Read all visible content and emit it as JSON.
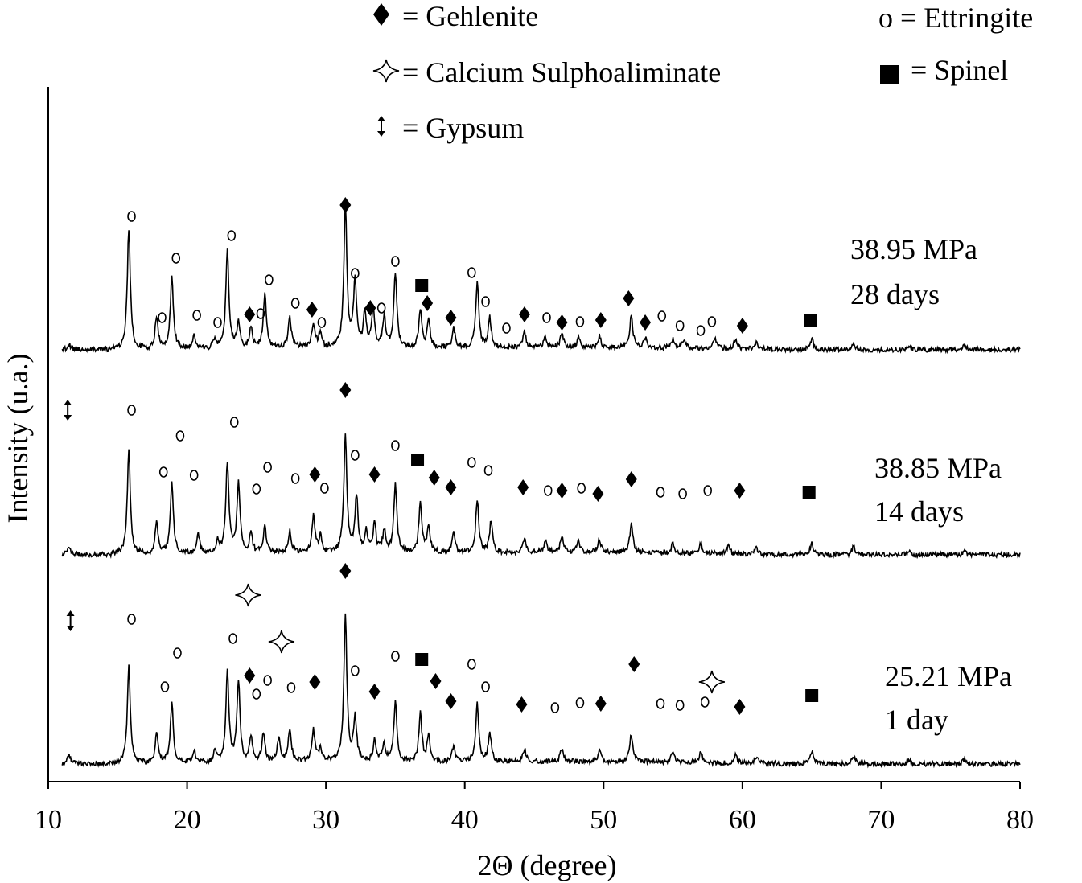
{
  "chart_data": {
    "type": "line",
    "title": "",
    "xlabel": "2Θ (degree)",
    "ylabel": "Intensity (u.a.)",
    "xlim": [
      10,
      80
    ],
    "xticks": [
      "10",
      "20",
      "30",
      "40",
      "50",
      "60",
      "70",
      "80"
    ],
    "grid": false,
    "legend_position": "top",
    "legend": [
      {
        "symbol": "diamond",
        "label": "= Gehlenite"
      },
      {
        "symbol": "star",
        "label": "= Calcium Sulphoaliminate"
      },
      {
        "symbol": "arrow",
        "label": "= Gypsum"
      },
      {
        "symbol": "circle",
        "label": "o =  Ettringite"
      },
      {
        "symbol": "square",
        "label": "=  Spinel"
      }
    ],
    "series": [
      {
        "strength": "38.95 MPa",
        "age": "28 days",
        "peaks": [
          [
            11.5,
            6
          ],
          [
            15.8,
            150
          ],
          [
            17.8,
            40
          ],
          [
            18.9,
            90
          ],
          [
            20.5,
            16
          ],
          [
            22.0,
            12
          ],
          [
            22.9,
            120
          ],
          [
            23.7,
            30
          ],
          [
            24.6,
            26
          ],
          [
            25.6,
            66
          ],
          [
            27.4,
            36
          ],
          [
            29.1,
            30
          ],
          [
            29.6,
            18
          ],
          [
            31.4,
            175
          ],
          [
            32.1,
            82
          ],
          [
            32.8,
            42
          ],
          [
            33.4,
            48
          ],
          [
            34.2,
            38
          ],
          [
            35.0,
            92
          ],
          [
            36.8,
            46
          ],
          [
            37.4,
            32
          ],
          [
            39.2,
            24
          ],
          [
            40.9,
            82
          ],
          [
            41.8,
            36
          ],
          [
            44.3,
            20
          ],
          [
            45.8,
            14
          ],
          [
            47.0,
            18
          ],
          [
            48.2,
            12
          ],
          [
            49.7,
            14
          ],
          [
            52.0,
            40
          ],
          [
            53.0,
            12
          ],
          [
            55.0,
            12
          ],
          [
            55.8,
            10
          ],
          [
            58.0,
            12
          ],
          [
            59.5,
            12
          ],
          [
            61.0,
            8
          ],
          [
            65.0,
            14
          ],
          [
            68.0,
            8
          ],
          [
            72.0,
            5
          ],
          [
            76.0,
            5
          ]
        ],
        "markers": [
          {
            "s": "o",
            "x": 16.0,
            "y": 14
          },
          {
            "s": "o",
            "x": 18.2,
            "y": 140
          },
          {
            "s": "o",
            "x": 19.2,
            "y": 66
          },
          {
            "s": "o",
            "x": 20.7,
            "y": 137
          },
          {
            "s": "o",
            "x": 22.2,
            "y": 146
          },
          {
            "s": "o",
            "x": 23.2,
            "y": 38
          },
          {
            "s": "d",
            "x": 24.5,
            "y": 136
          },
          {
            "s": "o",
            "x": 25.3,
            "y": 135
          },
          {
            "s": "o",
            "x": 25.9,
            "y": 93
          },
          {
            "s": "o",
            "x": 27.8,
            "y": 122
          },
          {
            "s": "d",
            "x": 29.0,
            "y": 130
          },
          {
            "s": "o",
            "x": 29.7,
            "y": 146
          },
          {
            "s": "d",
            "x": 31.4,
            "y": 0
          },
          {
            "s": "o",
            "x": 32.1,
            "y": 85
          },
          {
            "s": "d",
            "x": 33.2,
            "y": 128
          },
          {
            "s": "o",
            "x": 34.0,
            "y": 128
          },
          {
            "s": "o",
            "x": 35.0,
            "y": 70
          },
          {
            "s": "sq",
            "x": 36.9,
            "y": 100
          },
          {
            "s": "d",
            "x": 37.3,
            "y": 122
          },
          {
            "s": "d",
            "x": 39.0,
            "y": 140
          },
          {
            "s": "o",
            "x": 40.5,
            "y": 84
          },
          {
            "s": "o",
            "x": 41.5,
            "y": 120
          },
          {
            "s": "o",
            "x": 43.0,
            "y": 153
          },
          {
            "s": "d",
            "x": 44.3,
            "y": 136
          },
          {
            "s": "o",
            "x": 45.9,
            "y": 140
          },
          {
            "s": "d",
            "x": 47.0,
            "y": 146
          },
          {
            "s": "o",
            "x": 48.3,
            "y": 145
          },
          {
            "s": "d",
            "x": 49.8,
            "y": 143
          },
          {
            "s": "d",
            "x": 51.8,
            "y": 116
          },
          {
            "s": "d",
            "x": 53.0,
            "y": 146
          },
          {
            "s": "o",
            "x": 54.2,
            "y": 138
          },
          {
            "s": "o",
            "x": 55.5,
            "y": 150
          },
          {
            "s": "o",
            "x": 57.0,
            "y": 156
          },
          {
            "s": "o",
            "x": 57.8,
            "y": 145
          },
          {
            "s": "d",
            "x": 60.0,
            "y": 150
          },
          {
            "s": "sq",
            "x": 64.9,
            "y": 143
          }
        ]
      },
      {
        "strength": "38.85 MPa",
        "age": "14 days",
        "peaks": [
          [
            11.5,
            8
          ],
          [
            15.8,
            130
          ],
          [
            17.8,
            40
          ],
          [
            18.9,
            90
          ],
          [
            20.8,
            24
          ],
          [
            22.2,
            16
          ],
          [
            22.9,
            112
          ],
          [
            23.7,
            88
          ],
          [
            24.6,
            22
          ],
          [
            25.6,
            32
          ],
          [
            27.4,
            26
          ],
          [
            29.1,
            44
          ],
          [
            29.6,
            20
          ],
          [
            31.4,
            145
          ],
          [
            32.2,
            68
          ],
          [
            32.9,
            26
          ],
          [
            33.5,
            36
          ],
          [
            34.2,
            26
          ],
          [
            35.0,
            86
          ],
          [
            36.8,
            62
          ],
          [
            37.4,
            32
          ],
          [
            39.2,
            24
          ],
          [
            40.9,
            66
          ],
          [
            41.9,
            40
          ],
          [
            44.3,
            18
          ],
          [
            45.8,
            14
          ],
          [
            47.0,
            20
          ],
          [
            48.2,
            14
          ],
          [
            49.7,
            16
          ],
          [
            52.0,
            36
          ],
          [
            55.0,
            12
          ],
          [
            57.0,
            12
          ],
          [
            59.0,
            10
          ],
          [
            61.0,
            8
          ],
          [
            65.0,
            14
          ],
          [
            68.0,
            10
          ],
          [
            72.0,
            5
          ],
          [
            76.0,
            5
          ]
        ],
        "markers": [
          {
            "s": "ar",
            "x": 11.4,
            "y": 0
          },
          {
            "s": "o",
            "x": 16.0,
            "y": 0
          },
          {
            "s": "o",
            "x": 18.3,
            "y": 77
          },
          {
            "s": "o",
            "x": 19.5,
            "y": 32
          },
          {
            "s": "o",
            "x": 20.5,
            "y": 81
          },
          {
            "s": "o",
            "x": 23.4,
            "y": 15
          },
          {
            "s": "o",
            "x": 25.0,
            "y": 98
          },
          {
            "s": "o",
            "x": 25.8,
            "y": 71
          },
          {
            "s": "o",
            "x": 27.8,
            "y": 85
          },
          {
            "s": "d",
            "x": 29.2,
            "y": 80
          },
          {
            "s": "o",
            "x": 29.9,
            "y": 97
          },
          {
            "s": "d",
            "x": 31.4,
            "y": -25
          },
          {
            "s": "o",
            "x": 32.1,
            "y": 56
          },
          {
            "s": "d",
            "x": 33.5,
            "y": 80
          },
          {
            "s": "o",
            "x": 35.0,
            "y": 44
          },
          {
            "s": "sq",
            "x": 36.6,
            "y": 62
          },
          {
            "s": "d",
            "x": 37.8,
            "y": 84
          },
          {
            "s": "d",
            "x": 39.0,
            "y": 96
          },
          {
            "s": "o",
            "x": 40.5,
            "y": 65
          },
          {
            "s": "o",
            "x": 41.7,
            "y": 75
          },
          {
            "s": "d",
            "x": 44.2,
            "y": 96
          },
          {
            "s": "o",
            "x": 46.0,
            "y": 100
          },
          {
            "s": "d",
            "x": 47.0,
            "y": 100
          },
          {
            "s": "o",
            "x": 48.4,
            "y": 97
          },
          {
            "s": "d",
            "x": 49.6,
            "y": 104
          },
          {
            "s": "d",
            "x": 52.0,
            "y": 86
          },
          {
            "s": "o",
            "x": 54.1,
            "y": 102
          },
          {
            "s": "o",
            "x": 55.7,
            "y": 104
          },
          {
            "s": "o",
            "x": 57.5,
            "y": 100
          },
          {
            "s": "d",
            "x": 59.8,
            "y": 100
          },
          {
            "s": "sq",
            "x": 64.8,
            "y": 102
          }
        ]
      },
      {
        "strength": "25.21 MPa",
        "age": "1 day",
        "peaks": [
          [
            11.5,
            10
          ],
          [
            15.8,
            120
          ],
          [
            17.8,
            36
          ],
          [
            18.9,
            74
          ],
          [
            20.5,
            16
          ],
          [
            22.0,
            14
          ],
          [
            22.9,
            110
          ],
          [
            23.7,
            98
          ],
          [
            24.6,
            30
          ],
          [
            25.5,
            36
          ],
          [
            26.6,
            30
          ],
          [
            27.4,
            40
          ],
          [
            29.1,
            38
          ],
          [
            29.6,
            16
          ],
          [
            31.4,
            180
          ],
          [
            32.1,
            54
          ],
          [
            33.5,
            26
          ],
          [
            34.2,
            20
          ],
          [
            35.0,
            75
          ],
          [
            36.8,
            60
          ],
          [
            37.4,
            30
          ],
          [
            39.2,
            20
          ],
          [
            40.9,
            72
          ],
          [
            41.8,
            36
          ],
          [
            44.3,
            16
          ],
          [
            47.0,
            16
          ],
          [
            49.7,
            14
          ],
          [
            52.0,
            34
          ],
          [
            55.0,
            14
          ],
          [
            57.0,
            12
          ],
          [
            59.5,
            10
          ],
          [
            61.0,
            8
          ],
          [
            65.0,
            16
          ],
          [
            68.0,
            10
          ],
          [
            72.0,
            5
          ],
          [
            76.0,
            6
          ]
        ],
        "markers": [
          {
            "s": "ar",
            "x": 11.6,
            "y": -8
          },
          {
            "s": "o",
            "x": 16.0,
            "y": -10
          },
          {
            "s": "o",
            "x": 18.4,
            "y": 74
          },
          {
            "s": "o",
            "x": 19.3,
            "y": 32
          },
          {
            "s": "o",
            "x": 23.3,
            "y": 14
          },
          {
            "s": "st",
            "x": 24.4,
            "y": -40
          },
          {
            "s": "d",
            "x": 24.5,
            "y": 60
          },
          {
            "s": "o",
            "x": 25.0,
            "y": 83
          },
          {
            "s": "o",
            "x": 25.8,
            "y": 66
          },
          {
            "s": "st",
            "x": 26.8,
            "y": 18
          },
          {
            "s": "o",
            "x": 27.5,
            "y": 75
          },
          {
            "s": "d",
            "x": 29.2,
            "y": 68
          },
          {
            "s": "d",
            "x": 31.4,
            "y": -70
          },
          {
            "s": "o",
            "x": 32.1,
            "y": 54
          },
          {
            "s": "d",
            "x": 33.5,
            "y": 80
          },
          {
            "s": "o",
            "x": 35.0,
            "y": 36
          },
          {
            "s": "sq",
            "x": 36.9,
            "y": 40
          },
          {
            "s": "d",
            "x": 37.9,
            "y": 67
          },
          {
            "s": "d",
            "x": 39.0,
            "y": 92
          },
          {
            "s": "o",
            "x": 40.5,
            "y": 46
          },
          {
            "s": "o",
            "x": 41.5,
            "y": 74
          },
          {
            "s": "d",
            "x": 44.1,
            "y": 96
          },
          {
            "s": "o",
            "x": 46.5,
            "y": 100
          },
          {
            "s": "o",
            "x": 48.3,
            "y": 94
          },
          {
            "s": "d",
            "x": 49.8,
            "y": 95
          },
          {
            "s": "d",
            "x": 52.2,
            "y": 46
          },
          {
            "s": "o",
            "x": 54.1,
            "y": 95
          },
          {
            "s": "o",
            "x": 55.5,
            "y": 97
          },
          {
            "s": "st",
            "x": 57.8,
            "y": 68
          },
          {
            "s": "o",
            "x": 57.3,
            "y": 93
          },
          {
            "s": "d",
            "x": 59.8,
            "y": 99
          },
          {
            "s": "sq",
            "x": 65.0,
            "y": 85
          }
        ]
      }
    ]
  }
}
